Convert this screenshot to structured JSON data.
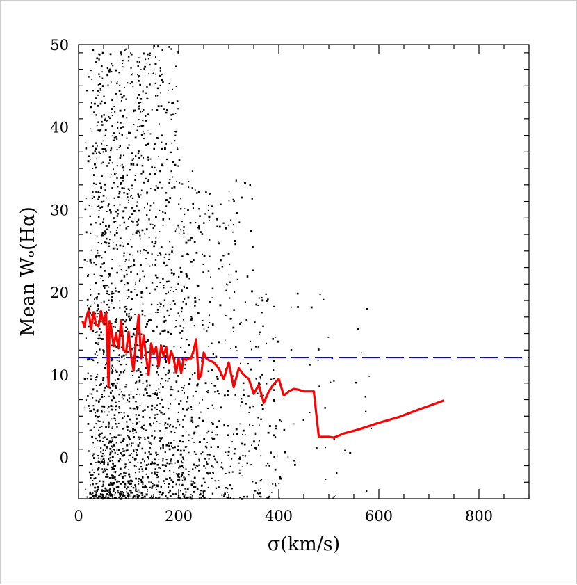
{
  "chart_data": {
    "type": "scatter",
    "title": "",
    "xlabel": "σ(km/s)",
    "ylabel": "Mean Wₒ(Hα)",
    "xlim": [
      0,
      900
    ],
    "ylim": [
      -5,
      50
    ],
    "x_ticks": [
      0,
      200,
      400,
      600,
      800
    ],
    "y_ticks": [
      0,
      10,
      20,
      30,
      40,
      50
    ],
    "grid": false,
    "legend": "none",
    "series": [
      {
        "kind": "points",
        "color": "#000000",
        "description_count": 2500,
        "x_range": [
          5,
          740
        ],
        "y_range": [
          -5,
          50
        ],
        "distribution": "dense below 300 km/s, sparse to 600 km/s"
      },
      {
        "kind": "line",
        "color": "#ff0000",
        "x": [
          8,
          12,
          15,
          20,
          25,
          30,
          35,
          40,
          45,
          50,
          55,
          58,
          60,
          62,
          65,
          70,
          75,
          80,
          85,
          90,
          95,
          100,
          105,
          110,
          115,
          120,
          125,
          130,
          135,
          140,
          145,
          150,
          155,
          160,
          165,
          170,
          175,
          180,
          185,
          190,
          195,
          200,
          205,
          210,
          215,
          220,
          225,
          230,
          235,
          240,
          245,
          250,
          255,
          260,
          270,
          280,
          290,
          300,
          310,
          320,
          330,
          340,
          350,
          360,
          370,
          380,
          390,
          400,
          410,
          420,
          430,
          440,
          450,
          460,
          470,
          480,
          490,
          500,
          510,
          530,
          560,
          600,
          640,
          680,
          730
        ],
        "y": [
          16.5,
          15.8,
          16.9,
          17.8,
          15.5,
          17.6,
          16.1,
          15.9,
          17.7,
          16.2,
          17.5,
          12.5,
          8.5,
          16.5,
          15.8,
          13.5,
          15.0,
          13.2,
          16.6,
          13.0,
          12.7,
          15.2,
          12.3,
          10.5,
          14.5,
          17.2,
          12.0,
          14.8,
          12.2,
          10.0,
          13.8,
          12.5,
          13.4,
          11.0,
          13.5,
          12.2,
          13.4,
          11.4,
          12.9,
          12.0,
          10.3,
          12.0,
          10.2,
          12.0,
          11.8,
          12.0,
          12.0,
          13.0,
          14.3,
          9.5,
          10.0,
          12.7,
          12.0,
          11.8,
          11.5,
          10.8,
          9.5,
          11.5,
          8.5,
          10.8,
          10.0,
          9.5,
          7.7,
          8.8,
          6.6,
          8.0,
          8.9,
          9.5,
          7.5,
          8.0,
          8.3,
          8.2,
          8.0,
          8.0,
          8.0,
          2.5,
          2.5,
          2.5,
          2.4,
          2.9,
          3.4,
          4.2,
          4.9,
          5.8,
          6.9
        ]
      },
      {
        "kind": "dashed-line",
        "color": "#0000ff",
        "y": 12.1,
        "x_from": 0,
        "x_to": 900
      }
    ]
  }
}
